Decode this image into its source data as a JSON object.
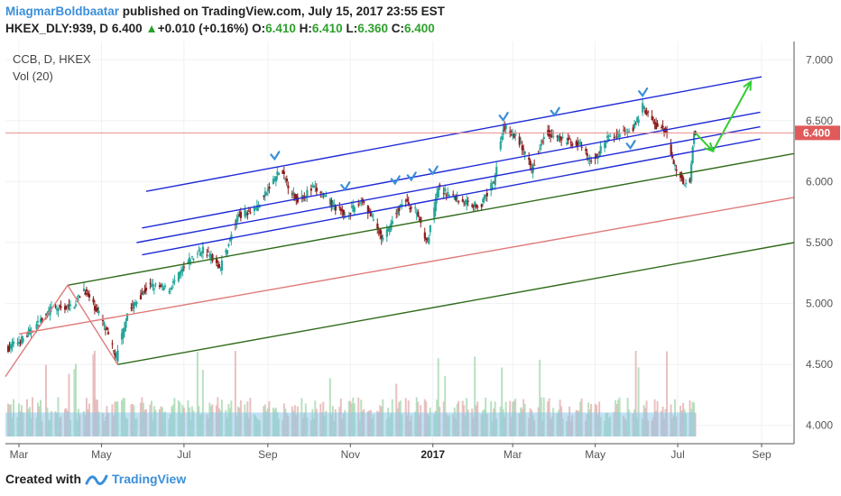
{
  "header": {
    "author": "MiagmarBoldbaatar",
    "published_text": "published on TradingView.com, July 15, 2017 23:55 EST",
    "symbol": "HKEX_DLY:939, D",
    "last_price": "6.400",
    "change_arrow": "▲",
    "change": "+0.010 (+0.16%)",
    "open_label": "O:",
    "open": "6.410",
    "high_label": "H:",
    "high": "6.410",
    "low_label": "L:",
    "low": "6.360",
    "close_label": "C:",
    "close": "6.400"
  },
  "legend": {
    "series": "CCB, D, HKEX",
    "volume": "Vol (20)"
  },
  "footer": {
    "created_with": "Created with",
    "brand": "TradingView"
  },
  "colors": {
    "up": "#26a69a",
    "down": "#8b1d1d",
    "channel_blue": "#1f2bd6",
    "channel_green": "#2f6b1a",
    "median_red": "#e07b7b",
    "arrow": "#33cc33",
    "marker": "#3b8fd9",
    "volume_ma": "#8fc9e8"
  },
  "chart_data": {
    "type": "candlestick",
    "title": "CCB, D, HKEX",
    "x_range": [
      "2016-02-20",
      "2017-09-25"
    ],
    "x_ticks": [
      {
        "date": "2016-03-01",
        "label": "Mar"
      },
      {
        "date": "2016-05-01",
        "label": "May"
      },
      {
        "date": "2016-07-01",
        "label": "Jul"
      },
      {
        "date": "2016-09-01",
        "label": "Sep"
      },
      {
        "date": "2016-11-01",
        "label": "Nov"
      },
      {
        "date": "2017-01-01",
        "label": "2017"
      },
      {
        "date": "2017-03-01",
        "label": "Mar"
      },
      {
        "date": "2017-05-01",
        "label": "May"
      },
      {
        "date": "2017-07-01",
        "label": "Jul"
      },
      {
        "date": "2017-09-01",
        "label": "Sep"
      }
    ],
    "y_range": [
      3.85,
      7.15
    ],
    "y_ticks": [
      "4.000",
      "4.500",
      "5.000",
      "5.500",
      "6.000",
      "6.500",
      "7.000"
    ],
    "last_price": 6.4,
    "last_price_label": "6.400",
    "price_path": [
      [
        "2016-02-20",
        4.62
      ],
      [
        "2016-03-05",
        4.72
      ],
      [
        "2016-03-25",
        4.95
      ],
      [
        "2016-04-10",
        4.98
      ],
      [
        "2016-04-18",
        5.12
      ],
      [
        "2016-05-01",
        4.88
      ],
      [
        "2016-05-12",
        4.55
      ],
      [
        "2016-05-20",
        4.92
      ],
      [
        "2016-06-05",
        5.15
      ],
      [
        "2016-06-20",
        5.12
      ],
      [
        "2016-07-05",
        5.35
      ],
      [
        "2016-07-15",
        5.45
      ],
      [
        "2016-07-28",
        5.3
      ],
      [
        "2016-08-10",
        5.72
      ],
      [
        "2016-08-25",
        5.8
      ],
      [
        "2016-09-10",
        6.1
      ],
      [
        "2016-09-22",
        5.85
      ],
      [
        "2016-10-05",
        5.95
      ],
      [
        "2016-10-20",
        5.8
      ],
      [
        "2016-10-28",
        5.72
      ],
      [
        "2016-11-10",
        5.85
      ],
      [
        "2016-11-25",
        5.52
      ],
      [
        "2016-12-10",
        5.85
      ],
      [
        "2016-12-20",
        5.75
      ],
      [
        "2016-12-28",
        5.5
      ],
      [
        "2017-01-05",
        5.95
      ],
      [
        "2017-01-20",
        5.85
      ],
      [
        "2017-02-05",
        5.8
      ],
      [
        "2017-02-15",
        6.0
      ],
      [
        "2017-02-22",
        6.45
      ],
      [
        "2017-03-05",
        6.35
      ],
      [
        "2017-03-15",
        6.1
      ],
      [
        "2017-03-25",
        6.42
      ],
      [
        "2017-04-05",
        6.35
      ],
      [
        "2017-04-20",
        6.3
      ],
      [
        "2017-04-28",
        6.15
      ],
      [
        "2017-05-10",
        6.35
      ],
      [
        "2017-05-20",
        6.4
      ],
      [
        "2017-05-30",
        6.45
      ],
      [
        "2017-06-05",
        6.62
      ],
      [
        "2017-06-15",
        6.45
      ],
      [
        "2017-06-22",
        6.42
      ],
      [
        "2017-06-28",
        6.15
      ],
      [
        "2017-07-05",
        6.0
      ],
      [
        "2017-07-10",
        6.0
      ],
      [
        "2017-07-13",
        6.42
      ],
      [
        "2017-07-14",
        6.4
      ]
    ],
    "volume_ma_level": 0.28,
    "trend_lines": [
      {
        "color": "channel_blue",
        "points": [
          [
            "2016-06-03",
            5.92
          ],
          [
            "2017-09-01",
            6.86
          ]
        ]
      },
      {
        "color": "channel_blue",
        "points": [
          [
            "2016-05-31",
            5.62
          ],
          [
            "2017-08-31",
            6.57
          ]
        ]
      },
      {
        "color": "channel_blue",
        "points": [
          [
            "2016-05-27",
            5.5
          ],
          [
            "2017-08-31",
            6.45
          ]
        ]
      },
      {
        "color": "channel_blue",
        "points": [
          [
            "2016-05-31",
            5.4
          ],
          [
            "2017-08-31",
            6.35
          ]
        ]
      },
      {
        "color": "channel_green",
        "points": [
          [
            "2016-04-06",
            5.15
          ],
          [
            "2017-09-25",
            6.23
          ]
        ]
      },
      {
        "color": "channel_green",
        "points": [
          [
            "2016-05-13",
            4.5
          ],
          [
            "2017-09-25",
            5.5
          ]
        ]
      },
      {
        "color": "median_red",
        "points": [
          [
            "2016-03-01",
            4.75
          ],
          [
            "2017-09-25",
            5.87
          ]
        ]
      },
      {
        "color": "median_red",
        "points": [
          [
            "2016-02-20",
            4.4
          ],
          [
            "2016-04-06",
            5.15
          ]
        ]
      },
      {
        "color": "median_red",
        "points": [
          [
            "2016-04-06",
            5.15
          ],
          [
            "2016-05-13",
            4.5
          ]
        ]
      }
    ],
    "arrows": [
      {
        "from": [
          "2017-07-14",
          6.4
        ],
        "to": [
          "2017-07-27",
          6.25
        ]
      },
      {
        "from": [
          "2017-07-27",
          6.25
        ],
        "to": [
          "2017-08-24",
          6.82
        ]
      }
    ],
    "markers": [
      {
        "date": "2016-09-06",
        "price": 6.2,
        "dir": "down"
      },
      {
        "date": "2016-10-28",
        "price": 5.95,
        "dir": "down"
      },
      {
        "date": "2016-12-04",
        "price": 6.0,
        "dir": "down"
      },
      {
        "date": "2016-12-16",
        "price": 6.03,
        "dir": "down"
      },
      {
        "date": "2017-01-01",
        "price": 6.08,
        "dir": "down"
      },
      {
        "date": "2017-02-22",
        "price": 6.52,
        "dir": "down"
      },
      {
        "date": "2017-04-01",
        "price": 6.56,
        "dir": "down"
      },
      {
        "date": "2017-05-27",
        "price": 6.29,
        "dir": "up"
      },
      {
        "date": "2017-06-05",
        "price": 6.72,
        "dir": "down"
      }
    ]
  }
}
